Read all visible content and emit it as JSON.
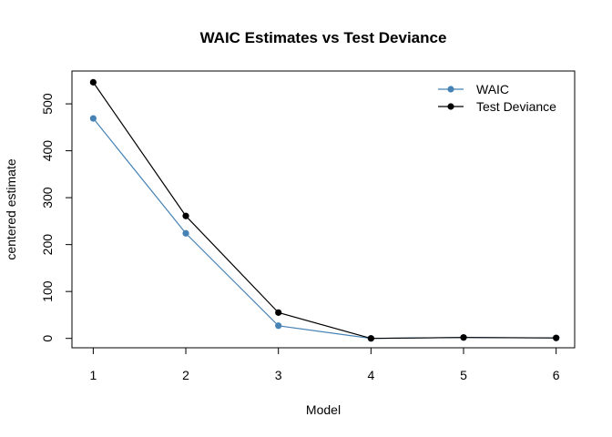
{
  "chart_data": {
    "type": "line",
    "title": "WAIC Estimates vs Test Deviance",
    "xlabel": "Model",
    "ylabel": "centered estimate",
    "x": [
      1,
      2,
      3,
      4,
      5,
      6
    ],
    "xlim": [
      0.77,
      6.2
    ],
    "ylim": [
      -20,
      570
    ],
    "xticks": [
      1,
      2,
      3,
      4,
      5,
      6
    ],
    "yticks": [
      0,
      100,
      200,
      300,
      400,
      500
    ],
    "grid": false,
    "legend_position": "top-right",
    "series": [
      {
        "name": "WAIC",
        "color": "#4682B4",
        "values": [
          469,
          224,
          27,
          0,
          2,
          1
        ]
      },
      {
        "name": "Test Deviance",
        "color": "#000000",
        "values": [
          546,
          261,
          55,
          0,
          2,
          1
        ]
      }
    ]
  }
}
